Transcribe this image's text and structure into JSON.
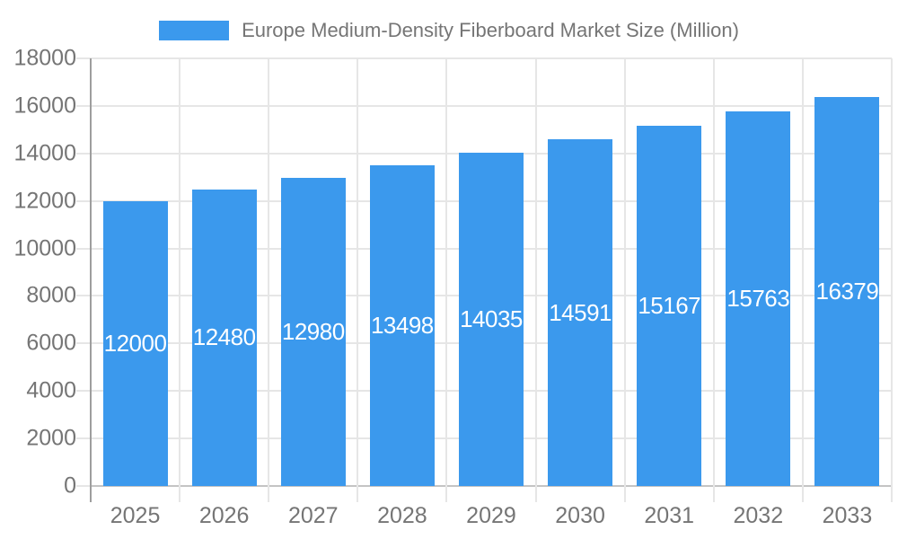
{
  "chart_data": {
    "type": "bar",
    "title": "Europe Medium-Density Fiberboard Market Size (Million)",
    "categories": [
      "2025",
      "2026",
      "2027",
      "2028",
      "2029",
      "2030",
      "2031",
      "2032",
      "2033"
    ],
    "values": [
      12000,
      12480,
      12980,
      13498,
      14035,
      14591,
      15167,
      15763,
      16379
    ],
    "xlabel": "",
    "ylabel": "",
    "ylim": [
      0,
      18000
    ],
    "yticks": [
      0,
      2000,
      4000,
      6000,
      8000,
      10000,
      12000,
      14000,
      16000,
      18000
    ],
    "grid": "horizontal-gridlines-and-vertical-category-separators",
    "legend_position": "top-center",
    "value_label_position": "inside-middle",
    "colors": {
      "bar": "#3B99ED",
      "value_label_text": "#FFFFFF",
      "axis_text": "#757575",
      "title_text": "#757575",
      "gridline": "#E6E6E6",
      "y_axis_line": "#9E9E9E",
      "baseline": "#C4C4C4"
    }
  }
}
